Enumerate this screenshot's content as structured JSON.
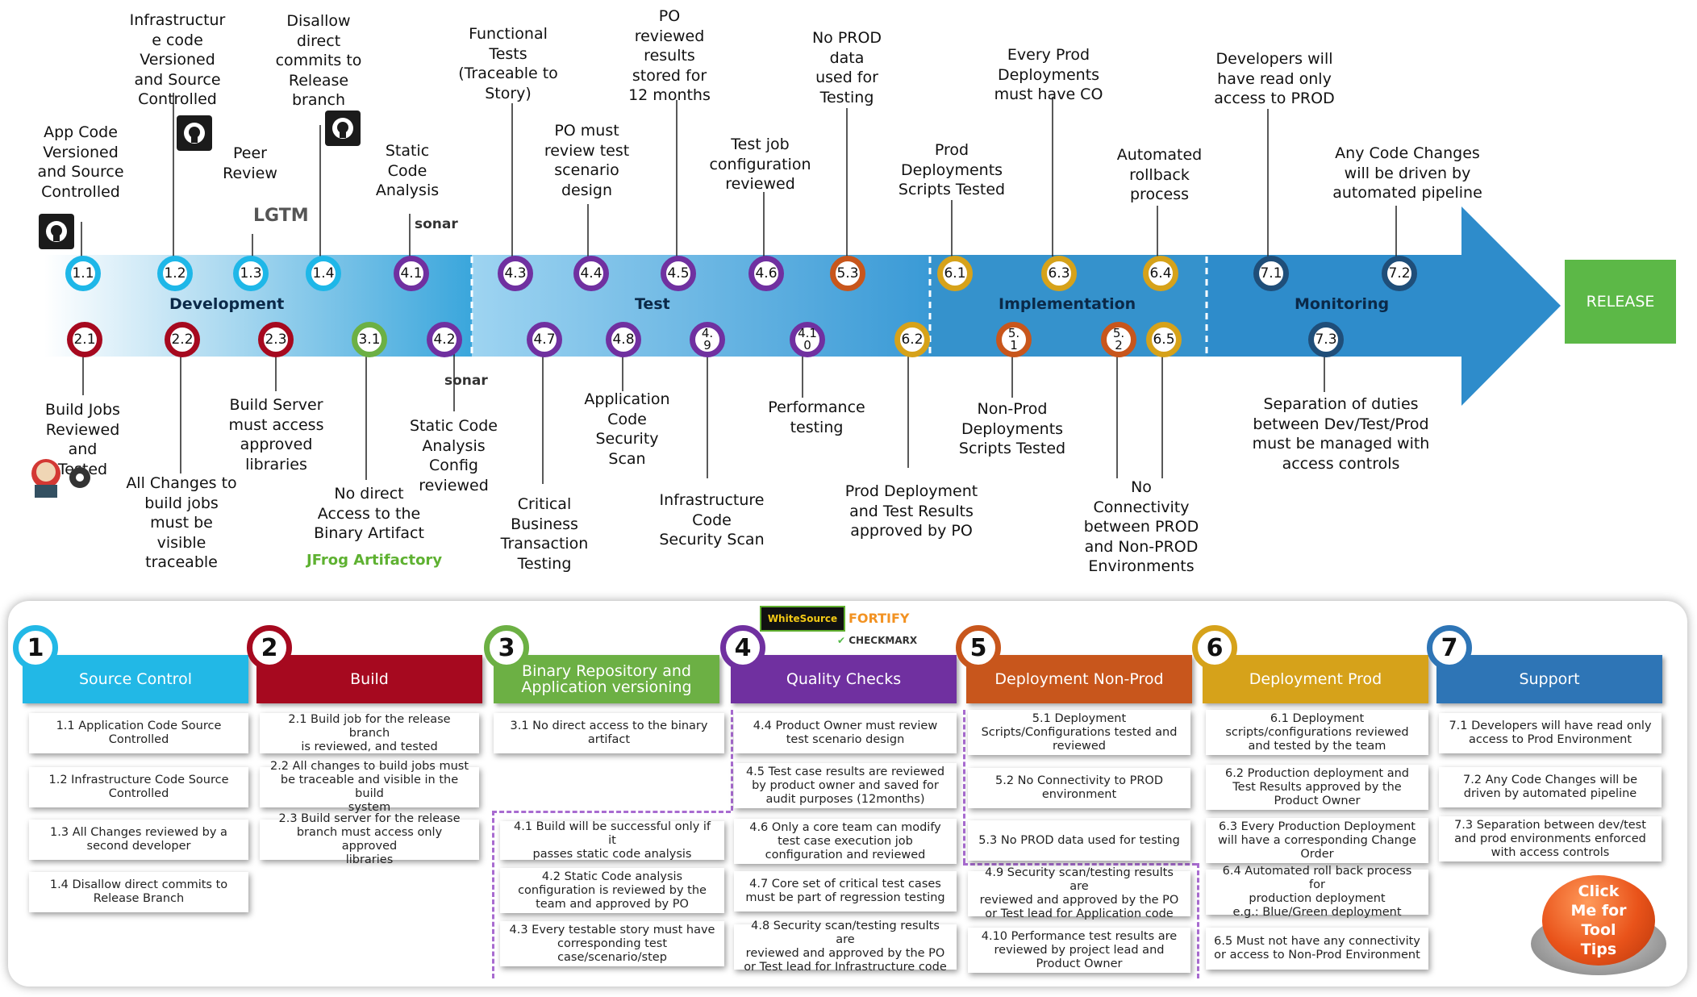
{
  "lanes": {
    "development": "Development",
    "test": "Test",
    "implementation": "Implementation",
    "monitoring": "Monitoring"
  },
  "release_label": "RELEASE",
  "nodes": {
    "n1_1": "1.1",
    "n1_2": "1.2",
    "n1_3": "1.3",
    "n1_4": "1.4",
    "n4_1a": "4.1",
    "n4_3": "4.3",
    "n4_4": "4.4",
    "n4_5": "4.5",
    "n4_6": "4.6",
    "n5_3": "5.3",
    "n6_1": "6.1",
    "n6_3": "6.3",
    "n6_4": "6.4",
    "n7_1": "7.1",
    "n7_2": "7.2",
    "n2_1": "2.1",
    "n2_2": "2.2",
    "n2_3": "2.3",
    "n3_1": "3.1",
    "n4_2": "4.2",
    "n4_7": "4.7",
    "n4_8": "4.8",
    "n4_9": "4.\n9",
    "n4_10": "4.1\n0",
    "n6_2": "6.2",
    "n5_1": "5.\n1",
    "n5_2": "5.\n2",
    "n6_5": "6.5",
    "n7_3": "7.3"
  },
  "annotations_top": {
    "a1_1": "App Code\nVersioned\nand Source\nControlled",
    "a1_2": "Infrastructur\ne code\nVersioned\nand Source\nControlled",
    "a1_3": "Peer\nReview",
    "a1_4": "Disallow\ndirect\ncommits to\nRelease\nbranch",
    "a4_1": "Static\nCode\nAnalysis",
    "a4_3": "Functional\nTests\n(Traceable to\nStory)",
    "a4_4": "PO must\nreview test\nscenario\ndesign",
    "a4_5": "PO\nreviewed\nresults\nstored for\n12 months",
    "a4_6": "Test job\nconfiguration\nreviewed",
    "a5_3": "No PROD\ndata\nused for\nTesting",
    "a6_1": "Prod\nDeployments\nScripts Tested",
    "a6_3": "Every Prod\nDeployments\nmust have CO",
    "a6_4": "Automated\nrollback\nprocess",
    "a7_1": "Developers will\nhave read only\naccess to PROD",
    "a7_2": "Any Code Changes\nwill be driven by\nautomated pipeline"
  },
  "annotations_bottom": {
    "a2_1": "Build Jobs\nReviewed and\nTested",
    "a2_2": "All Changes to\nbuild jobs\nmust be\nvisible\ntraceable",
    "a2_3": "Build Server\nmust access\napproved\nlibraries",
    "a3_1": "No direct\nAccess to the\nBinary Artifact",
    "a4_2": "Static Code\nAnalysis\nConfig\nreviewed",
    "a4_7": "Critical\nBusiness\nTransaction\nTesting",
    "a4_8": "Application\nCode\nSecurity\nScan",
    "a4_9": "Infrastructure\nCode\nSecurity Scan",
    "a4_10": "Performance\ntesting",
    "a6_2": "Prod Deployment\nand Test Results\napproved by PO",
    "a5_1": "Non-Prod\nDeployments\nScripts Tested",
    "a5_2": "No\nConnectivity\nbetween PROD\nand Non-PROD\nEnvironments",
    "a7_3": "Separation of duties\nbetween Dev/Test/Prod\nmust be managed with\naccess controls"
  },
  "logos": {
    "lgtm": "LGTM",
    "sonar": "sonar",
    "jfrog": "JFrog Artifactory",
    "whitesource": "WhiteSource",
    "fortify": "FORTIFY",
    "checkmarx": "CHECKMARX"
  },
  "icons": [
    "github-icon",
    "jenkins-icon",
    "circleci-icon",
    "sonar-logo",
    "whitesource-logo",
    "fortify-logo",
    "checkmarx-logo"
  ],
  "categories": [
    {
      "num": "1",
      "title": "Source Control",
      "color": "#22b8e6"
    },
    {
      "num": "2",
      "title": "Build",
      "color": "#a6091f"
    },
    {
      "num": "3",
      "title": "Binary Repository and\nApplication versioning",
      "color": "#6cb044"
    },
    {
      "num": "4",
      "title": "Quality Checks",
      "color": "#7030a0"
    },
    {
      "num": "5",
      "title": "Deployment Non-Prod",
      "color": "#c8561c"
    },
    {
      "num": "6",
      "title": "Deployment Prod",
      "color": "#d6a21a"
    },
    {
      "num": "7",
      "title": "Support",
      "color": "#2e75b6"
    }
  ],
  "cards": {
    "c1_1": "1.1 Application Code Source\nControlled",
    "c1_2": "1.2 Infrastructure Code Source\nControlled",
    "c1_3": "1.3 All Changes reviewed by a\nsecond developer",
    "c1_4": "1.4 Disallow direct commits to\nRelease Branch",
    "c2_1": "2.1 Build job for the release branch\nis reviewed, and tested",
    "c2_2": "2.2 All changes to build jobs must\nbe traceable and visible in the build\nsystem",
    "c2_3": "2.3 Build server for the release\nbranch must access only approved\nlibraries",
    "c3_1": "3.1 No direct access to the binary\nartifact",
    "c4_1": "4.1 Build will be successful only if it\npasses static code analysis",
    "c4_2": "4.2 Static Code analysis\nconfiguration is reviewed by the\nteam and approved by PO",
    "c4_3": "4.3 Every testable  story must have\ncorresponding test\ncase/scenario/step",
    "c4_4": "4.4 Product Owner must review\ntest scenario design",
    "c4_5": "4.5 Test case results are reviewed\nby product owner and saved for\naudit purposes (12months)",
    "c4_6": "4.6 Only a core team can modify\ntest case execution job\nconfiguration and reviewed",
    "c4_7": "4.7 Core set of critical test cases\nmust be part of regression testing",
    "c4_8": "4.8 Security scan/testing results are\nreviewed and approved by the PO\nor Test lead for Infrastructure code",
    "c5_1": "5.1 Deployment\nScripts/Configurations tested and\nreviewed",
    "c5_2": "5.2 No Connectivity to PROD\nenvironment",
    "c5_3": "5.3 No PROD data used for testing",
    "c4_9": "4.9 Security scan/testing results are\nreviewed and approved by the PO\nor Test lead for Application code",
    "c4_10": "4.10 Performance test results are\nreviewed by project lead and\nProduct Owner",
    "c6_1": "6.1 Deployment\nscripts/configurations  reviewed\nand tested by the team",
    "c6_2": "6.2 Production deployment and\nTest Results approved by the\nProduct Owner",
    "c6_3": "6.3 Every Production Deployment\nwill have a corresponding Change\nOrder",
    "c6_4": "6.4 Automated roll back process for\nproduction deployment\ne.g.: Blue/Green deployment",
    "c6_5": "6.5 Must not have any connectivity\nor access to Non-Prod Environment",
    "c7_1": "7.1 Developers will have read only\naccess to Prod Environment",
    "c7_2": "7.2 Any Code Changes will be\ndriven by automated pipeline",
    "c7_3": "7.3 Separation between dev/test\nand prod environments  enforced\nwith access controls"
  },
  "tooltip_button": "Click\nMe for\nTool\nTips"
}
